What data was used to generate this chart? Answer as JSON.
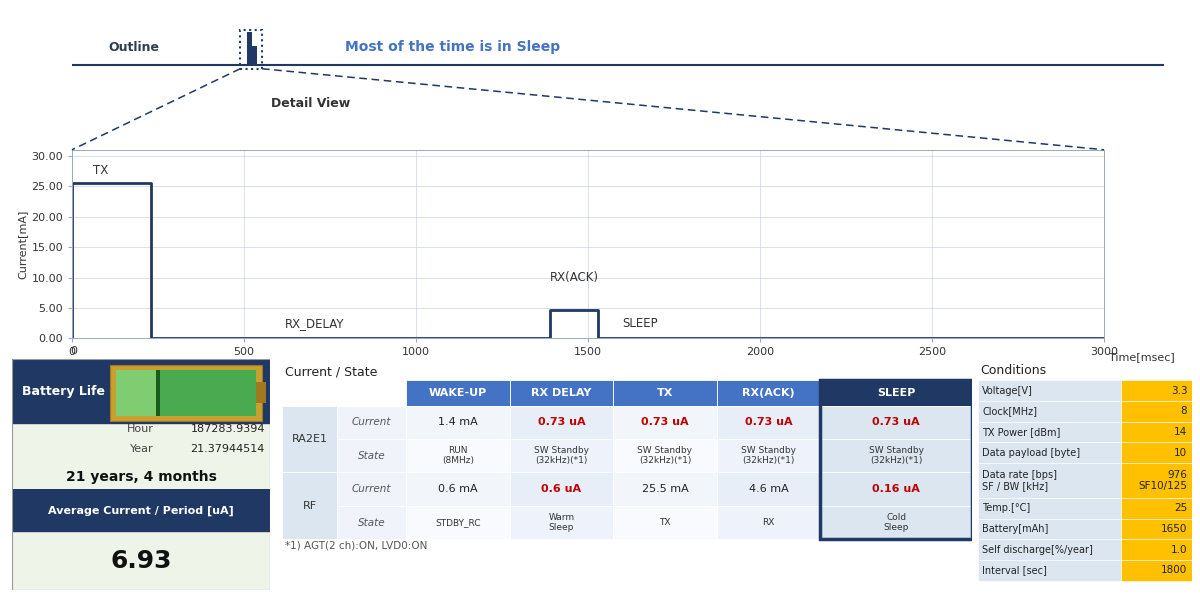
{
  "bg_color": "#ffffff",
  "dark_blue": "#1f3864",
  "header_blue": "#4472c4",
  "light_blue": "#dce6f1",
  "light_green": "#eef4e8",
  "dark_blue_header": "#1f3864",
  "orange_highlight": "#ffc000",
  "red_text": "#c00000",
  "detail_waveform_x": [
    0,
    0,
    230,
    230,
    1380,
    1380,
    1390,
    1390,
    1530,
    1530,
    1545,
    1545,
    3000
  ],
  "detail_waveform_y": [
    0,
    25.5,
    25.5,
    0.05,
    0.05,
    0.05,
    0.05,
    4.6,
    4.6,
    0.05,
    0.05,
    0.0,
    0.0
  ],
  "ylim": [
    0,
    31
  ],
  "xlim": [
    0,
    3000
  ],
  "yticks": [
    0.0,
    5.0,
    10.0,
    15.0,
    20.0,
    25.0,
    30.0
  ],
  "xticks": [
    0,
    500,
    1000,
    1500,
    2000,
    2500,
    3000
  ],
  "ylabel": "Current[mA]",
  "xlabel": "Time[msec]",
  "outline_label": "Outline",
  "most_sleep_label": "Most of the time is in Sleep",
  "detail_view_label": "Detail View",
  "conditions_title": "Conditions",
  "conditions_labels": [
    "Voltage[V]",
    "Clock[MHz]",
    "TX Power [dBm]",
    "Data payload [byte]",
    "Data rate [bps]\nSF / BW [kHz]",
    "Temp.[°C]",
    "Battery[mAh]",
    "Self discharge[%/year]",
    "Interval [sec]"
  ],
  "conditions_values": [
    "3.3",
    "8",
    "14",
    "10",
    "976\nSF10/125",
    "25",
    "1650",
    "1.0",
    "1800"
  ],
  "current_state_title": "Current / State",
  "table_col_headers": [
    "WAKE-UP",
    "RX DELAY",
    "TX",
    "RX(ACK)",
    "SLEEP"
  ],
  "table_row1_label": "RA2E1",
  "table_row1_current": [
    "1.4 mA",
    "0.73 uA",
    "0.73 uA",
    "0.73 uA",
    "0.73 uA"
  ],
  "table_row1_state": [
    "RUN\n(8MHz)",
    "SW Standby\n(32kHz)(*1)",
    "SW Standby\n(32kHz)(*1)",
    "SW Standby\n(32kHz)(*1)",
    "SW Standby\n(32kHz)(*1)"
  ],
  "table_row2_label": "RF",
  "table_row2_current": [
    "0.6 mA",
    "0.6 uA",
    "25.5 mA",
    "4.6 mA",
    "0.16 uA"
  ],
  "table_row2_state": [
    "STDBY_RC",
    "Warm\nSleep",
    "TX",
    "RX",
    "Cold\nSleep"
  ],
  "footnote": "*1) AGT(2 ch):ON, LVD0:ON",
  "battery_life_label": "Battery Life",
  "hour_label": "Hour",
  "hour_value": "187283.9394",
  "year_label": "Year",
  "year_value": "21.37944514",
  "lifetime_label": "21 years, 4 months",
  "avg_current_label": "Average Current / Period [uA]",
  "avg_current_value": "6.93"
}
